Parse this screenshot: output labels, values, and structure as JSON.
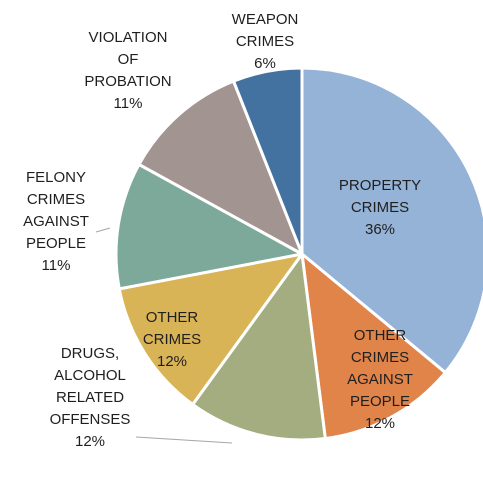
{
  "chart_data": {
    "type": "pie",
    "title": "",
    "unit": "%",
    "start_angle_deg": 0,
    "direction": "clockwise",
    "slices": [
      {
        "label": "PROPERTY CRIMES",
        "value": 36,
        "color": "#95b3d7"
      },
      {
        "label": "OTHER CRIMES AGAINST PEOPLE",
        "value": 12,
        "color": "#e0844a"
      },
      {
        "label": "DRUGS, ALCOHOL RELATED OFFENSES",
        "value": 12,
        "color": "#a3ad7f"
      },
      {
        "label": "OTHER CRIMES",
        "value": 12,
        "color": "#d9b457"
      },
      {
        "label": "FELONY CRIMES AGAINST PEOPLE",
        "value": 11,
        "color": "#7ca99a"
      },
      {
        "label": "VIOLATION OF PROBATION",
        "value": 11,
        "color": "#a29490"
      },
      {
        "label": "WEAPON CRIMES",
        "value": 6,
        "color": "#4472a0"
      }
    ]
  }
}
